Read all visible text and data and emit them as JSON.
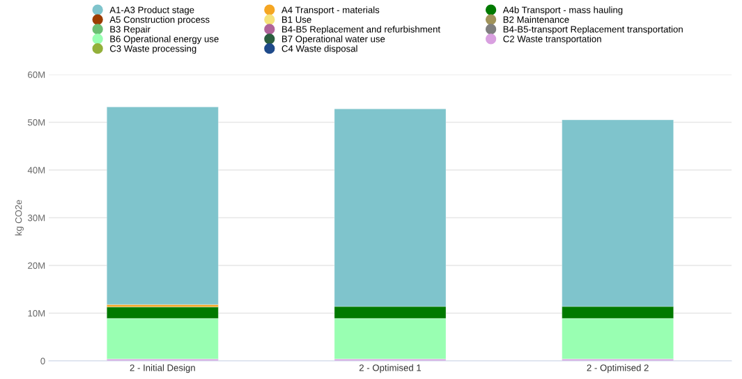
{
  "chart_data": {
    "type": "bar",
    "stacked": true,
    "ylabel": "kg CO2e",
    "categories": [
      "2 - Initial Design",
      "2 - Optimised 1",
      "2 - Optimised 2"
    ],
    "series": [
      {
        "name": "C4 Waste disposal",
        "color": "#1f4a8a",
        "values": [
          null,
          null,
          null
        ]
      },
      {
        "name": "C3 Waste processing",
        "color": "#93b03a",
        "values": [
          null,
          null,
          null
        ]
      },
      {
        "name": "C2 Waste transportation",
        "color": "#d9a0e0",
        "values": [
          0.4,
          0.4,
          0.4
        ]
      },
      {
        "name": "B7 Operational water use",
        "color": "#2b5e3f",
        "values": [
          null,
          null,
          null
        ]
      },
      {
        "name": "B6 Operational energy use",
        "color": "#99ffb2",
        "values": [
          8.5,
          8.5,
          8.5
        ]
      },
      {
        "name": "B4-B5-transport Replacement transportation",
        "color": "#7f7f7f",
        "values": [
          null,
          null,
          null
        ]
      },
      {
        "name": "B4-B5 Replacement and refurbishment",
        "color": "#b0649a",
        "values": [
          null,
          null,
          null
        ]
      },
      {
        "name": "B3 Repair",
        "color": "#6bbf73",
        "values": [
          null,
          null,
          null
        ]
      },
      {
        "name": "B2 Maintenance",
        "color": "#a0935a",
        "values": [
          null,
          null,
          null
        ]
      },
      {
        "name": "B1 Use",
        "color": "#f5e27a",
        "values": [
          null,
          null,
          null
        ]
      },
      {
        "name": "A5 Construction process",
        "color": "#9c3d00",
        "values": [
          null,
          null,
          null
        ]
      },
      {
        "name": "A4b Transport - mass hauling",
        "color": "#007a00",
        "values": [
          2.4,
          2.5,
          2.5
        ]
      },
      {
        "name": "A4 Transport - materials",
        "color": "#f5a623",
        "values": [
          0.5,
          null,
          null
        ]
      },
      {
        "name": "A1-A3 Product stage",
        "color": "#7fc4cc",
        "values": [
          41.4,
          41.4,
          39.1
        ]
      }
    ],
    "ylim": [
      0,
      60
    ],
    "yticks": [
      {
        "value": 0,
        "label": "0"
      },
      {
        "value": 10,
        "label": "10M"
      },
      {
        "value": 20,
        "label": "20M"
      },
      {
        "value": 30,
        "label": "30M"
      },
      {
        "value": 40,
        "label": "40M"
      },
      {
        "value": 50,
        "label": "50M"
      },
      {
        "value": 60,
        "label": "60M"
      }
    ],
    "grid": "y",
    "legend": "top",
    "marker": "circle"
  }
}
